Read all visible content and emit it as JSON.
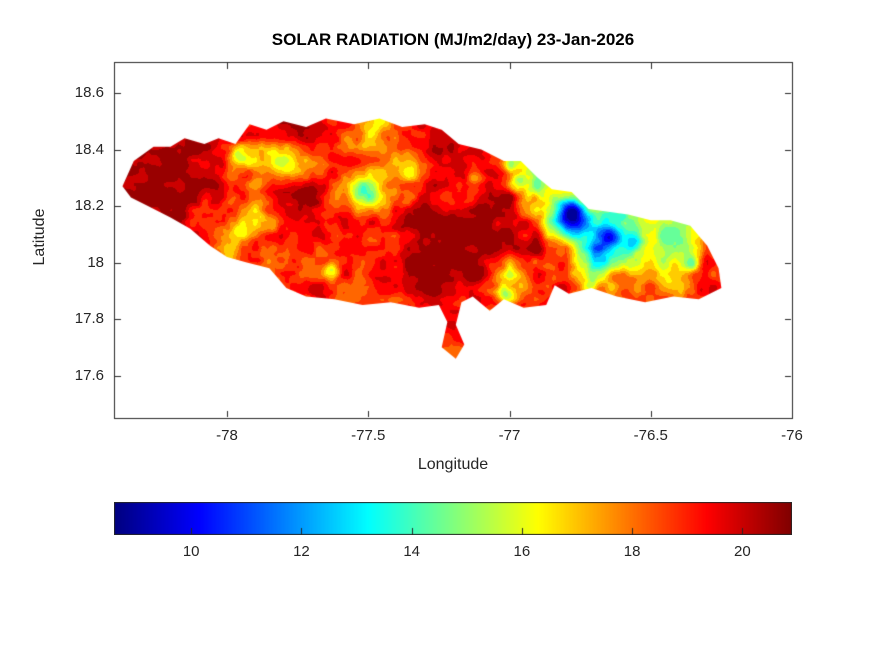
{
  "chart_data": {
    "type": "heatmap",
    "title": "SOLAR RADIATION (MJ/m2/day) 23-Jan-2026",
    "xlabel": "Longitude",
    "ylabel": "Latitude",
    "region": "Jamaica",
    "xlim": [
      -78.4,
      -76.0
    ],
    "ylim": [
      17.45,
      18.71
    ],
    "xticks": [
      -78,
      -77.5,
      -77,
      -76.5,
      -76
    ],
    "xtick_labels": [
      "-78",
      "-77.5",
      "-77",
      "-76.5",
      "-76"
    ],
    "yticks": [
      18.6,
      18.4,
      18.2,
      18.0,
      17.8,
      17.6
    ],
    "ytick_labels": [
      "18.6",
      "18.4",
      "18.2",
      "18",
      "17.8",
      "17.6"
    ],
    "colormap": "jet",
    "clim": [
      8.6,
      20.9
    ],
    "contour_bands": 20,
    "colorbar": {
      "orientation": "horizontal",
      "ticks": [
        10,
        12,
        14,
        16,
        18,
        20
      ],
      "tick_labels": [
        "10",
        "12",
        "14",
        "16",
        "18",
        "20"
      ]
    },
    "grid": {
      "lon_start": -78.4,
      "lon_step": 0.1,
      "ncols": 23,
      "lat_start": 18.55,
      "lat_step": -0.1,
      "nrows": 10,
      "units": "MJ/m2/day",
      "values": [
        [
          20.2,
          20.4,
          20.3,
          20.0,
          19.6,
          19.2,
          19.8,
          20.1,
          19.5,
          17.5,
          19.0,
          19.8,
          20.2,
          20.0,
          19.6,
          19.4,
          19.2,
          19.0,
          18.8,
          18.6,
          18.5,
          18.4,
          18.3
        ],
        [
          20.5,
          20.6,
          20.4,
          19.8,
          19.3,
          18.8,
          19.6,
          20.0,
          18.8,
          16.8,
          18.5,
          19.6,
          20.3,
          19.9,
          19.3,
          18.6,
          18.0,
          18.4,
          18.2,
          18.0,
          17.8,
          18.0,
          18.2
        ],
        [
          20.6,
          20.7,
          20.5,
          20.2,
          19.0,
          16.6,
          16.3,
          17.6,
          18.9,
          18.4,
          17.4,
          19.2,
          19.8,
          19.5,
          17.6,
          15.2,
          17.2,
          18.6,
          18.4,
          18.2,
          18.0,
          18.3,
          18.5
        ],
        [
          20.7,
          20.8,
          20.6,
          20.4,
          19.2,
          18.8,
          20.2,
          20.3,
          17.6,
          15.6,
          17.4,
          19.0,
          19.3,
          19.6,
          20.0,
          15.2,
          17.0,
          18.2,
          18.5,
          18.3,
          18.1,
          18.4,
          18.6
        ],
        [
          20.5,
          20.6,
          20.4,
          19.6,
          18.9,
          16.8,
          18.4,
          20.3,
          19.6,
          18.7,
          19.4,
          20.5,
          20.6,
          20.6,
          20.0,
          18.5,
          11.0,
          14.0,
          13.5,
          17.0,
          14.8,
          18.4,
          18.6
        ],
        [
          20.2,
          20.3,
          20.4,
          19.8,
          17.4,
          19.0,
          18.8,
          18.6,
          19.0,
          19.2,
          19.8,
          20.6,
          20.7,
          20.7,
          20.3,
          20.0,
          18.3,
          11.0,
          13.5,
          16.0,
          14.8,
          19.6,
          19.2
        ],
        [
          19.6,
          19.8,
          19.9,
          19.6,
          19.0,
          17.5,
          18.6,
          19.3,
          19.0,
          18.8,
          19.6,
          20.5,
          20.6,
          20.4,
          15.8,
          18.8,
          19.0,
          15.0,
          18.4,
          17.6,
          17.2,
          18.8,
          19.0
        ],
        [
          19.4,
          19.5,
          19.6,
          19.4,
          19.2,
          18.9,
          18.8,
          19.0,
          19.0,
          18.8,
          18.8,
          19.8,
          20.0,
          18.8,
          18.4,
          19.2,
          19.0,
          18.9,
          18.6,
          18.4,
          18.8,
          19.6,
          19.4
        ],
        [
          19.2,
          19.3,
          19.4,
          19.3,
          19.2,
          19.0,
          18.9,
          18.8,
          18.8,
          18.7,
          18.7,
          19.0,
          18.9,
          18.6,
          18.5,
          18.8,
          18.9,
          18.8,
          18.7,
          18.6,
          18.8,
          19.2,
          19.2
        ],
        [
          19.0,
          19.1,
          19.2,
          19.2,
          19.1,
          19.0,
          18.9,
          18.8,
          18.8,
          18.7,
          18.6,
          18.8,
          18.8,
          18.6,
          18.5,
          18.7,
          18.8,
          18.8,
          18.7,
          18.6,
          18.7,
          19.0,
          19.0
        ]
      ]
    },
    "anomalies": [
      [
        -76.78,
        18.17,
        0.05,
        9.0
      ],
      [
        -76.655,
        18.09,
        0.038,
        9.6
      ],
      [
        -76.57,
        18.07,
        0.03,
        12.5
      ],
      [
        -76.4,
        18.09,
        0.055,
        14.5
      ],
      [
        -76.36,
        18.0,
        0.03,
        13.8
      ],
      [
        -76.69,
        17.965,
        0.03,
        14.2
      ],
      [
        -77.01,
        17.89,
        0.032,
        15.0
      ],
      [
        -76.96,
        18.29,
        0.035,
        14.8
      ],
      [
        -76.99,
        18.34,
        0.028,
        15.5
      ],
      [
        -77.51,
        18.25,
        0.042,
        14.6
      ],
      [
        -77.96,
        18.38,
        0.035,
        16.0
      ],
      [
        -77.8,
        18.35,
        0.045,
        16.0
      ],
      [
        -77.95,
        18.11,
        0.04,
        16.0
      ],
      [
        -77.47,
        18.49,
        0.035,
        16.5
      ],
      [
        -76.52,
        18.15,
        0.03,
        16.5
      ],
      [
        -76.45,
        17.93,
        0.035,
        16.8
      ],
      [
        -77.63,
        17.97,
        0.03,
        16.3
      ],
      [
        -77.35,
        18.32,
        0.04,
        17.0
      ],
      [
        -77.12,
        18.3,
        0.035,
        17.2
      ]
    ],
    "noise": {
      "amplitude": 0.9,
      "scale_deg": 0.045,
      "seed": 7
    },
    "outline_lonlat": [
      [
        -78.37,
        18.27
      ],
      [
        -78.33,
        18.36
      ],
      [
        -78.26,
        18.41
      ],
      [
        -78.2,
        18.41
      ],
      [
        -78.15,
        18.44
      ],
      [
        -78.08,
        18.42
      ],
      [
        -78.03,
        18.44
      ],
      [
        -77.97,
        18.42
      ],
      [
        -77.92,
        18.49
      ],
      [
        -77.86,
        18.47
      ],
      [
        -77.8,
        18.5
      ],
      [
        -77.72,
        18.48
      ],
      [
        -77.65,
        18.51
      ],
      [
        -77.55,
        18.49
      ],
      [
        -77.46,
        18.51
      ],
      [
        -77.38,
        18.48
      ],
      [
        -77.3,
        18.49
      ],
      [
        -77.24,
        18.47
      ],
      [
        -77.18,
        18.42
      ],
      [
        -77.1,
        18.4
      ],
      [
        -77.02,
        18.36
      ],
      [
        -76.96,
        18.36
      ],
      [
        -76.9,
        18.3
      ],
      [
        -76.85,
        18.26
      ],
      [
        -76.78,
        18.25
      ],
      [
        -76.72,
        18.19
      ],
      [
        -76.65,
        18.18
      ],
      [
        -76.58,
        18.17
      ],
      [
        -76.5,
        18.15
      ],
      [
        -76.43,
        18.15
      ],
      [
        -76.36,
        18.13
      ],
      [
        -76.3,
        18.06
      ],
      [
        -76.26,
        17.98
      ],
      [
        -76.25,
        17.91
      ],
      [
        -76.33,
        17.87
      ],
      [
        -76.42,
        17.88
      ],
      [
        -76.52,
        17.86
      ],
      [
        -76.62,
        17.88
      ],
      [
        -76.71,
        17.91
      ],
      [
        -76.79,
        17.89
      ],
      [
        -76.84,
        17.92
      ],
      [
        -76.87,
        17.85
      ],
      [
        -76.95,
        17.84
      ],
      [
        -77.02,
        17.87
      ],
      [
        -77.07,
        17.83
      ],
      [
        -77.13,
        17.88
      ],
      [
        -77.17,
        17.86
      ],
      [
        -77.19,
        17.78
      ],
      [
        -77.16,
        17.71
      ],
      [
        -77.19,
        17.66
      ],
      [
        -77.24,
        17.7
      ],
      [
        -77.22,
        17.79
      ],
      [
        -77.25,
        17.85
      ],
      [
        -77.32,
        17.84
      ],
      [
        -77.42,
        17.86
      ],
      [
        -77.52,
        17.85
      ],
      [
        -77.62,
        17.87
      ],
      [
        -77.72,
        17.88
      ],
      [
        -77.79,
        17.91
      ],
      [
        -77.85,
        17.98
      ],
      [
        -77.93,
        18.0
      ],
      [
        -78.0,
        18.02
      ],
      [
        -78.06,
        18.06
      ],
      [
        -78.13,
        18.12
      ],
      [
        -78.2,
        18.16
      ],
      [
        -78.28,
        18.2
      ],
      [
        -78.34,
        18.23
      ]
    ]
  },
  "colors": {
    "text": "#262626",
    "axis": "#262626",
    "background": "#ffffff"
  }
}
